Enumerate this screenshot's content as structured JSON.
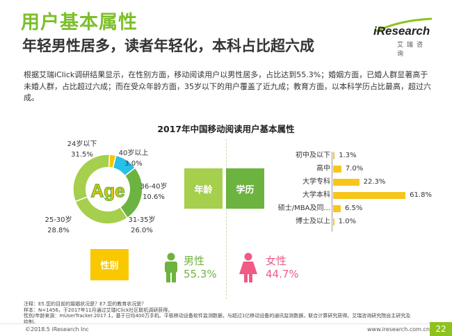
{
  "header": {
    "title": "用户基本属性",
    "subtitle": "年轻男性居多，读者年轻化，本科占比超六成",
    "logo_text": "iResearch",
    "logo_sub": "艾瑞咨询"
  },
  "description": "根据艾瑞iClick调研结果显示，在性别方面，移动阅读用户以男性居多，占比达到55.3%；婚姻方面，已婚人群显著高于未婚人群，占比超过六成；而在受众年龄方面，35岁以下的用户覆盖了近九成；教育方面，以本科学历占比最高，超过六成。",
  "colors": {
    "green_dark": "#6db33f",
    "green_light": "#a5cf4c",
    "cyan": "#27c0e8",
    "yellow": "#f8c400",
    "pink": "#ef5a86",
    "tag_yellow": "#f9c800"
  },
  "chart_data": [
    {
      "type": "pie",
      "title": "2017年中国移动阅读用户基本属性",
      "center_label": "Age",
      "tag": "年龄",
      "categories": [
        "24岁以下",
        "25-30岁",
        "31-35岁",
        "36-40岁",
        "40岁以上"
      ],
      "values": [
        31.5,
        28.8,
        26.0,
        10.6,
        3.0
      ],
      "value_labels": [
        "31.5%",
        "28.8%",
        "26.0%",
        "10.6%",
        "3.0%"
      ]
    },
    {
      "type": "bar",
      "tag": "学历",
      "categories": [
        "初中及以下",
        "高中",
        "大学专科",
        "大学本科",
        "硕士/MBA及同...",
        "博士及以上"
      ],
      "values": [
        1.3,
        7.0,
        22.3,
        61.8,
        6.5,
        1.0
      ],
      "value_labels": [
        "1.3%",
        "7.0%",
        "22.3%",
        "61.8%",
        "6.5%",
        "1.0%"
      ]
    },
    {
      "type": "table",
      "tag": "性别",
      "categories": [
        "男性",
        "女性"
      ],
      "values": [
        55.3,
        44.7
      ],
      "value_labels": [
        "55.3%",
        "44.7%"
      ]
    }
  ],
  "icons": {
    "male": "male-person-icon",
    "female": "female-person-icon"
  },
  "notes": [
    "注释：E5.您的目前的婚姻状况是？E7.您的教育状况是？",
    "样本：N=1456，于2017年11月通过艾瑞iClick社区联机调研获得。",
    "性别/年龄来源：mUserTracker.2017.1，基于日均400万手机、平板移动设备软件监测数据，与超过1亿移动设备的通讯监测数据，联合计算研究获得。艾瑞咨询研究院自主研究及",
    "绘制。"
  ],
  "footer": {
    "copyright": "©2018.5 iResearch Inc",
    "website": "www.iresearch.com.cn",
    "page": "22"
  }
}
